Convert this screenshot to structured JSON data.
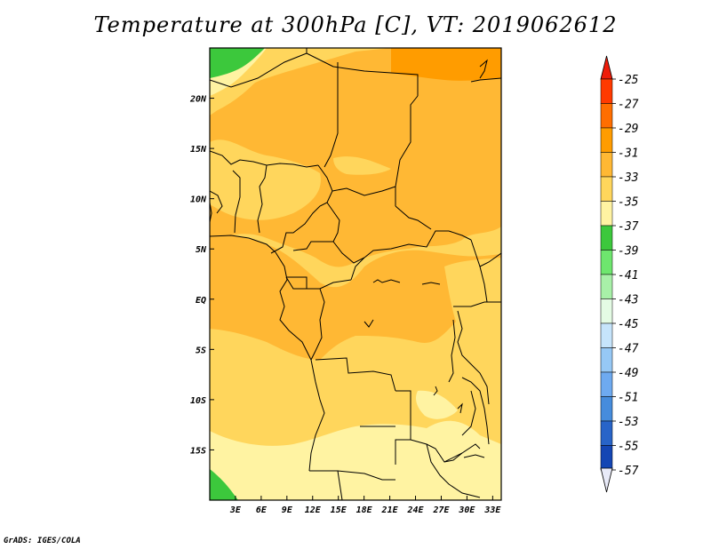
{
  "title": "Temperature at 300hPa [C], VT: 2019062612",
  "credit": "GrADS: IGES/COLA",
  "map": {
    "lon_range": [
      0,
      34
    ],
    "lat_range": [
      -20,
      25
    ],
    "lon_labels": [
      "3E",
      "6E",
      "9E",
      "12E",
      "15E",
      "18E",
      "21E",
      "24E",
      "27E",
      "30E",
      "33E"
    ],
    "lon_values": [
      3,
      6,
      9,
      12,
      15,
      18,
      21,
      24,
      27,
      30,
      33
    ],
    "lat_labels": [
      "20N",
      "15N",
      "10N",
      "5N",
      "EQ",
      "5S",
      "10S",
      "15S"
    ],
    "lat_values": [
      20,
      15,
      10,
      5,
      0,
      -5,
      -10,
      -15
    ]
  },
  "colorbar": {
    "labels": [
      "-25",
      "-27",
      "-29",
      "-31",
      "-33",
      "-35",
      "-37",
      "-39",
      "-41",
      "-43",
      "-45",
      "-47",
      "-49",
      "-51",
      "-53",
      "-55",
      "-57"
    ],
    "colors": [
      "#ff3a00",
      "#ff6e00",
      "#ff9c00",
      "#ffb834",
      "#ffd65c",
      "#fff3a2",
      "#3cc83c",
      "#6ee66e",
      "#a8f0a8",
      "#e4fbe4",
      "#c6e4fb",
      "#96c8f5",
      "#6eaaf0",
      "#468cdc",
      "#2864c8",
      "#1446b4",
      "#0a1478"
    ],
    "extremes": {
      "top": "#ee1c0a",
      "bottom": "#e8eaf8"
    }
  },
  "fill_colors": {
    "t27": "#ff9c00",
    "t29": "#ffb834",
    "t31": "#ffd65c",
    "t33": "#fff3a2",
    "t35": "#3cc83c"
  }
}
